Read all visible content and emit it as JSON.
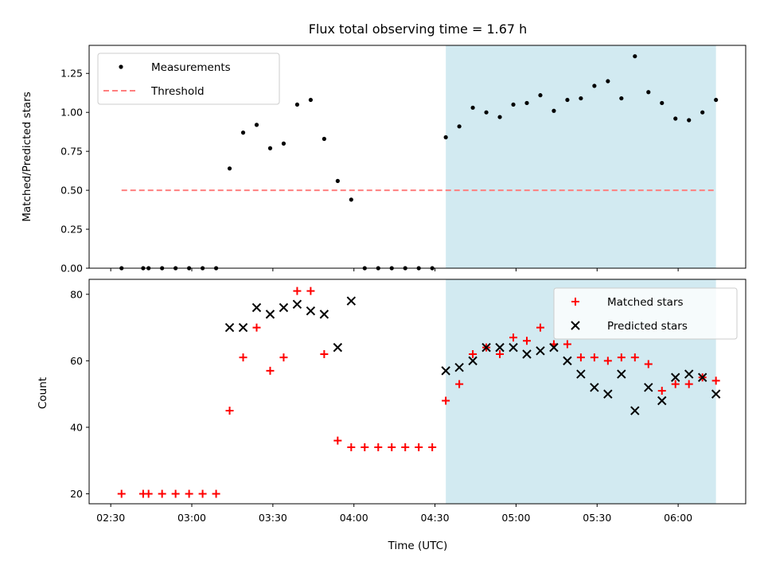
{
  "chart_data": {
    "title": "Flux total observing time = 1.67 h",
    "xlabel": "Time (UTC)",
    "x_ticks": [
      "02:30",
      "03:00",
      "03:30",
      "04:00",
      "04:30",
      "05:00",
      "05:30",
      "06:00"
    ],
    "x_range": [
      "02:22",
      "06:25"
    ],
    "shaded_span": {
      "from": "04:34",
      "to": "06:14",
      "color": "#add8e6"
    },
    "panels": [
      {
        "type": "scatter",
        "ylabel": "Matched/Predicted stars",
        "ylim": [
          0,
          1.43
        ],
        "y_ticks": [
          "0.00",
          "0.25",
          "0.50",
          "0.75",
          "1.00",
          "1.25"
        ],
        "legend": [
          "Measurements",
          "Threshold"
        ],
        "legend_position": "top-left",
        "series": [
          {
            "name": "Measurements",
            "marker": "dot",
            "color": "#000000",
            "x": [
              "02:34",
              "02:42",
              "02:44",
              "02:49",
              "02:54",
              "02:59",
              "03:04",
              "03:09",
              "03:14",
              "03:19",
              "03:24",
              "03:29",
              "03:34",
              "03:39",
              "03:44",
              "03:49",
              "03:54",
              "03:59",
              "04:04",
              "04:09",
              "04:14",
              "04:19",
              "04:24",
              "04:29",
              "04:34",
              "04:39",
              "04:44",
              "04:49",
              "04:54",
              "04:59",
              "05:04",
              "05:09",
              "05:14",
              "05:19",
              "05:24",
              "05:29",
              "05:34",
              "05:39",
              "05:44",
              "05:49",
              "05:54",
              "05:59",
              "06:04",
              "06:09",
              "06:14"
            ],
            "y": [
              0,
              0,
              0,
              0,
              0,
              0,
              0,
              0,
              0.64,
              0.87,
              0.92,
              0.77,
              0.8,
              1.05,
              1.08,
              0.83,
              0.56,
              0.44,
              0,
              0,
              0,
              0,
              0,
              0,
              0.84,
              0.91,
              1.03,
              1.0,
              0.97,
              1.05,
              1.06,
              1.11,
              1.01,
              1.08,
              1.09,
              1.17,
              1.2,
              1.09,
              1.36,
              1.13,
              1.06,
              0.96,
              0.95,
              1.0,
              1.08
            ]
          },
          {
            "name": "Threshold",
            "line": "dashed",
            "color": "#ff7f7f",
            "x": [
              "02:34",
              "06:14"
            ],
            "y": [
              0.5,
              0.5
            ]
          }
        ]
      },
      {
        "type": "scatter",
        "ylabel": "Count",
        "ylim": [
          17,
          84.5
        ],
        "y_ticks": [
          "20",
          "40",
          "60",
          "80"
        ],
        "legend": [
          "Matched stars",
          "Predicted stars"
        ],
        "legend_position": "top-right",
        "series": [
          {
            "name": "Matched stars",
            "marker": "plus",
            "color": "#ff0000",
            "x": [
              "02:34",
              "02:42",
              "02:44",
              "02:49",
              "02:54",
              "02:59",
              "03:04",
              "03:09",
              "03:14",
              "03:19",
              "03:24",
              "03:29",
              "03:34",
              "03:39",
              "03:44",
              "03:49",
              "03:54",
              "03:59",
              "04:04",
              "04:09",
              "04:14",
              "04:19",
              "04:24",
              "04:29",
              "04:34",
              "04:39",
              "04:44",
              "04:49",
              "04:54",
              "04:59",
              "05:04",
              "05:09",
              "05:14",
              "05:19",
              "05:24",
              "05:29",
              "05:34",
              "05:39",
              "05:44",
              "05:49",
              "05:54",
              "05:59",
              "06:04",
              "06:09",
              "06:14"
            ],
            "y": [
              20,
              20,
              20,
              20,
              20,
              20,
              20,
              20,
              45,
              61,
              70,
              57,
              61,
              81,
              81,
              62,
              36,
              34,
              34,
              34,
              34,
              34,
              34,
              34,
              48,
              53,
              62,
              64,
              62,
              67,
              66,
              70,
              65,
              65,
              61,
              61,
              60,
              61,
              61,
              59,
              51,
              53,
              53,
              55,
              54
            ]
          },
          {
            "name": "Predicted stars",
            "marker": "x",
            "color": "#000000",
            "x": [
              "03:14",
              "03:19",
              "03:24",
              "03:29",
              "03:34",
              "03:39",
              "03:44",
              "03:49",
              "03:54",
              "03:59",
              "04:34",
              "04:39",
              "04:44",
              "04:49",
              "04:54",
              "04:59",
              "05:04",
              "05:09",
              "05:14",
              "05:19",
              "05:24",
              "05:29",
              "05:34",
              "05:39",
              "05:44",
              "05:49",
              "05:54",
              "05:59",
              "06:04",
              "06:09",
              "06:14"
            ],
            "y": [
              70,
              70,
              76,
              74,
              76,
              77,
              75,
              74,
              64,
              78,
              57,
              58,
              60,
              64,
              64,
              64,
              62,
              63,
              64,
              60,
              56,
              52,
              50,
              56,
              45,
              52,
              48,
              55,
              56,
              55,
              50
            ]
          }
        ]
      }
    ]
  }
}
